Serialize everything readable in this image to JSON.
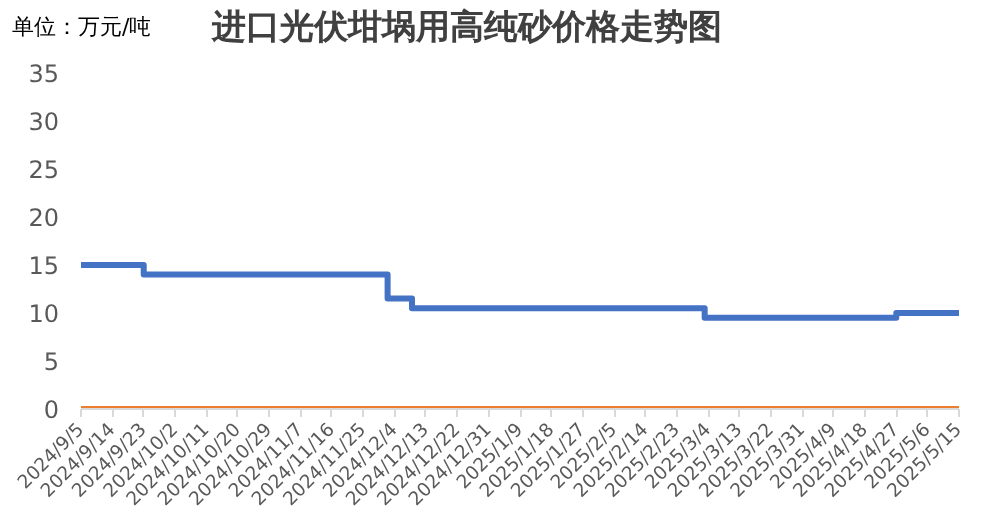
{
  "chart_data": {
    "type": "step",
    "title": "进口光伏坩埚用高纯砂价格走势图",
    "ylabel": "单位：万元/吨",
    "series": [
      {
        "color": "#4472c4",
        "x": [
          "2024-09-05",
          "2024-09-23",
          "2024-12-02",
          "2024-12-09",
          "2025-03-03",
          "2025-04-27",
          "2025-05-15"
        ],
        "values": [
          15,
          14,
          11.5,
          10.5,
          9.5,
          10,
          10
        ]
      },
      {
        "color": "#ed7d31",
        "x": [
          "2024-09-05",
          "2025-05-15"
        ],
        "values": [
          0,
          0
        ]
      }
    ],
    "xlim": [
      "2024-09-05",
      "2025-05-15"
    ],
    "xticks": [
      {
        "value": "2024-09-05",
        "label": "2024/9/5"
      },
      {
        "value": "2024-09-14",
        "label": "2024/9/14"
      },
      {
        "value": "2024-09-23",
        "label": "2024/9/23"
      },
      {
        "value": "2024-10-02",
        "label": "2024/10/2"
      },
      {
        "value": "2024-10-11",
        "label": "2024/10/11"
      },
      {
        "value": "2024-10-20",
        "label": "2024/10/20"
      },
      {
        "value": "2024-10-29",
        "label": "2024/10/29"
      },
      {
        "value": "2024-11-07",
        "label": "2024/11/7"
      },
      {
        "value": "2024-11-16",
        "label": "2024/11/16"
      },
      {
        "value": "2024-11-25",
        "label": "2024/11/25"
      },
      {
        "value": "2024-12-04",
        "label": "2024/12/4"
      },
      {
        "value": "2024-12-13",
        "label": "2024/12/13"
      },
      {
        "value": "2024-12-22",
        "label": "2024/12/22"
      },
      {
        "value": "2024-12-31",
        "label": "2024/12/31"
      },
      {
        "value": "2025-01-09",
        "label": "2025/1/9"
      },
      {
        "value": "2025-01-18",
        "label": "2025/1/18"
      },
      {
        "value": "2025-01-27",
        "label": "2025/1/27"
      },
      {
        "value": "2025-02-05",
        "label": "2025/2/5"
      },
      {
        "value": "2025-02-14",
        "label": "2025/2/14"
      },
      {
        "value": "2025-02-23",
        "label": "2025/2/23"
      },
      {
        "value": "2025-03-04",
        "label": "2025/3/4"
      },
      {
        "value": "2025-03-13",
        "label": "2025/3/13"
      },
      {
        "value": "2025-03-22",
        "label": "2025/3/22"
      },
      {
        "value": "2025-03-31",
        "label": "2025/3/31"
      },
      {
        "value": "2025-04-09",
        "label": "2025/4/9"
      },
      {
        "value": "2025-04-18",
        "label": "2025/4/18"
      },
      {
        "value": "2025-04-27",
        "label": "2025/4/27"
      },
      {
        "value": "2025-05-06",
        "label": "2025/5/6"
      },
      {
        "value": "2025-05-15",
        "label": "2025/5/15"
      }
    ],
    "ylim": [
      0,
      35
    ],
    "yticks": [
      0,
      5,
      10,
      15,
      20,
      25,
      30,
      35
    ],
    "grid": false
  }
}
